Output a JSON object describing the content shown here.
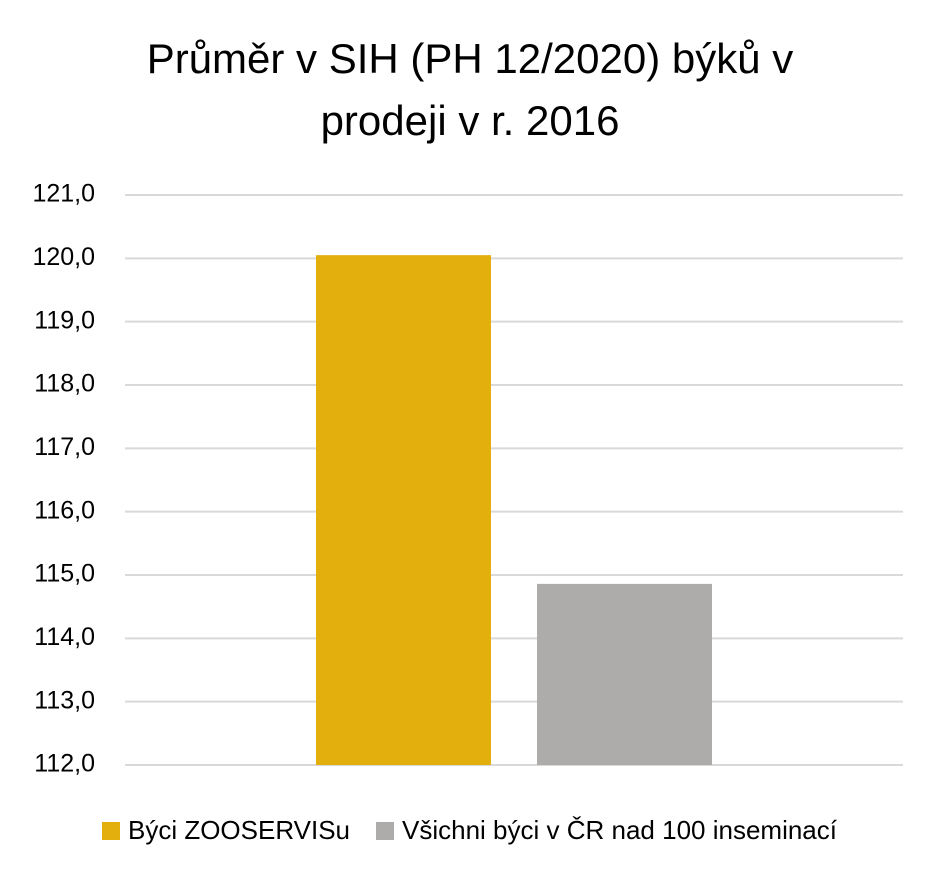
{
  "chart_data": {
    "type": "bar",
    "title": "Průměr v SIH (PH 12/2020) býků v prodeji v r. 2016",
    "categories": [
      null
    ],
    "series": [
      {
        "name": "Býci ZOOSERVISu",
        "color": "#e2af0c",
        "values": [
          120.05
        ]
      },
      {
        "name": "Všichni býci v ČR nad 100 inseminací",
        "color": "#aeabab",
        "values": [
          114.86
        ]
      }
    ],
    "ylim": [
      112,
      121
    ],
    "yticks": [
      {
        "value": 112,
        "label": "112,0"
      },
      {
        "value": 113,
        "label": "113,0"
      },
      {
        "value": 114,
        "label": "114,0"
      },
      {
        "value": 115,
        "label": "115,0"
      },
      {
        "value": 116,
        "label": "116,0"
      },
      {
        "value": 117,
        "label": "117,0"
      },
      {
        "value": 118,
        "label": "118,0"
      },
      {
        "value": 119,
        "label": "119,0"
      },
      {
        "value": 120,
        "label": "120,0"
      },
      {
        "value": 121,
        "label": "121,0"
      }
    ],
    "grid": true,
    "legend": "bottom"
  }
}
